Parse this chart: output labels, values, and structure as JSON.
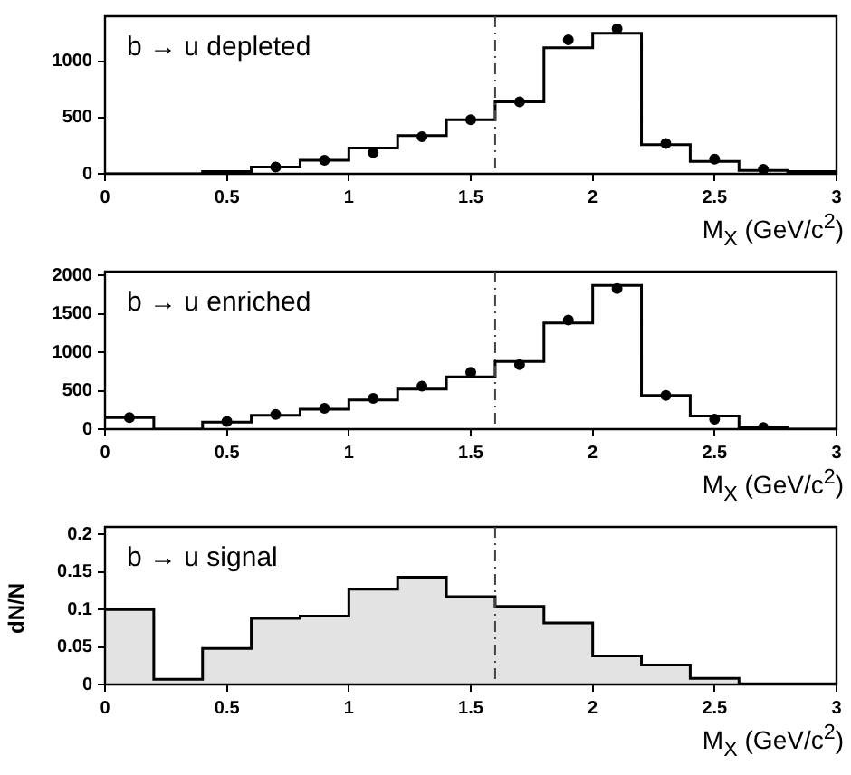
{
  "chart_data": [
    {
      "type": "histogram",
      "xlabel": "M$_{X}$ (GeV/c$^{2}$)",
      "annotations": [
        "b → u depleted"
      ],
      "xlim": [
        0,
        3
      ],
      "xticks": [
        0,
        0.5,
        1,
        1.5,
        2,
        2.5,
        3
      ],
      "ylim": [
        0,
        1400
      ],
      "yticks": [
        0,
        500,
        1000
      ],
      "grid": false,
      "legend": false,
      "ref_lines": [
        {
          "axis": "x",
          "value": 1.6,
          "line_style": "dashed",
          "color": "#444444"
        }
      ],
      "series": [
        {
          "type": "histogram",
          "color": "#000000",
          "bins": [
            0,
            0.2,
            0.4,
            0.6,
            0.8,
            1,
            1.2,
            1.4,
            1.6,
            1.8,
            2,
            2.2,
            2.4,
            2.6,
            2.8,
            3
          ],
          "values": [
            0,
            0,
            20,
            60,
            120,
            230,
            340,
            480,
            640,
            1120,
            1250,
            260,
            110,
            30,
            20
          ]
        },
        {
          "type": "scatter",
          "color": "#000000",
          "marker": "circle",
          "x": [
            0.7,
            0.9,
            1.1,
            1.3,
            1.5,
            1.7,
            1.9,
            2.1,
            2.3,
            2.5,
            2.7
          ],
          "values": [
            60,
            120,
            190,
            330,
            480,
            640,
            1190,
            1290,
            270,
            130,
            40
          ]
        }
      ]
    },
    {
      "type": "histogram",
      "xlabel": "M$_{X}$ (GeV/c$^{2}$)",
      "annotations": [
        "b → u enriched"
      ],
      "xlim": [
        0,
        3
      ],
      "xticks": [
        0,
        0.5,
        1,
        1.5,
        2,
        2.5,
        3
      ],
      "ylim": [
        0,
        2050
      ],
      "yticks": [
        0,
        500,
        1000,
        1500,
        2000
      ],
      "grid": false,
      "legend": false,
      "ref_lines": [
        {
          "axis": "x",
          "value": 1.6,
          "line_style": "dashed",
          "color": "#444444"
        }
      ],
      "series": [
        {
          "type": "histogram",
          "color": "#000000",
          "bins": [
            0,
            0.2,
            0.4,
            0.6,
            0.8,
            1,
            1.2,
            1.4,
            1.6,
            1.8,
            2,
            2.2,
            2.4,
            2.6,
            2.8,
            3
          ],
          "values": [
            150,
            0,
            90,
            180,
            260,
            380,
            520,
            680,
            880,
            1380,
            1870,
            440,
            170,
            30,
            0
          ]
        },
        {
          "type": "scatter",
          "color": "#000000",
          "marker": "circle",
          "x": [
            0.1,
            0.5,
            0.7,
            0.9,
            1.1,
            1.3,
            1.5,
            1.7,
            1.9,
            2.1,
            2.3,
            2.5,
            2.7
          ],
          "values": [
            150,
            100,
            190,
            270,
            400,
            560,
            740,
            840,
            1420,
            1830,
            440,
            130,
            20
          ]
        }
      ]
    },
    {
      "type": "histogram",
      "xlabel": "M$_{X}$ (GeV/c$^{2}$)",
      "ylabel": "dN/N",
      "annotations": [
        "b → u signal"
      ],
      "xlim": [
        0,
        3
      ],
      "xticks": [
        0,
        0.5,
        1,
        1.5,
        2,
        2.5,
        3
      ],
      "ylim": [
        0,
        0.21
      ],
      "yticks": [
        0,
        0.05,
        0.1,
        0.15,
        0.2
      ],
      "grid": false,
      "legend": false,
      "ref_lines": [
        {
          "axis": "x",
          "value": 1.6,
          "line_style": "dashed",
          "color": "#444444"
        }
      ],
      "color": "#000000",
      "bins": [
        0,
        0.2,
        0.4,
        0.6,
        0.8,
        1,
        1.2,
        1.4,
        1.6,
        1.8,
        2,
        2.2,
        2.4,
        2.6,
        2.8,
        3
      ],
      "values": [
        0.1,
        0.007,
        0.048,
        0.088,
        0.091,
        0.127,
        0.143,
        0.117,
        0.104,
        0.082,
        0.038,
        0.026,
        0.008,
        0.001,
        0.001
      ]
    }
  ]
}
